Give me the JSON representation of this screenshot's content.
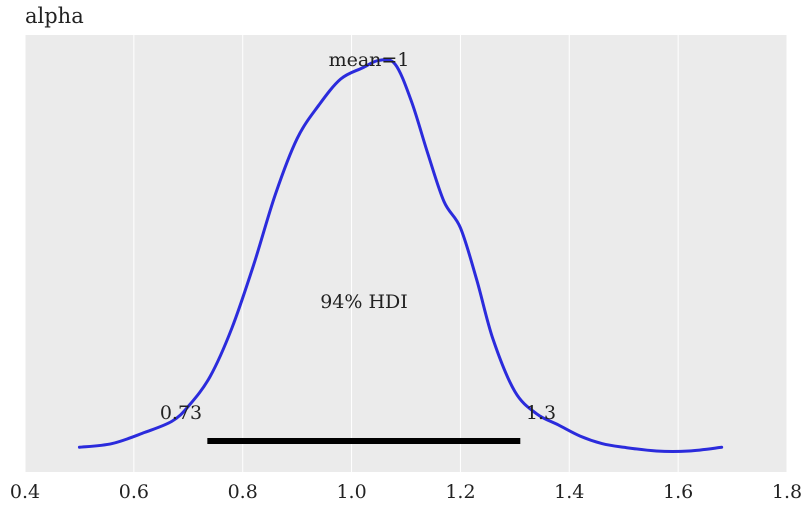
{
  "chart_data": {
    "type": "line",
    "title": "alpha",
    "xlabel": "",
    "ylabel": "",
    "xlim": [
      0.4,
      1.8
    ],
    "ylim": [
      0,
      1.07
    ],
    "xticks": [
      0.4,
      0.6,
      0.8,
      1.0,
      1.2,
      1.4,
      1.6,
      1.8
    ],
    "xtick_labels": [
      "0.4",
      "0.6",
      "0.8",
      "1.0",
      "1.2",
      "1.4",
      "1.6",
      "1.8"
    ],
    "grid": true,
    "series": [
      {
        "color": "#2b2bdc",
        "x": [
          0.5,
          0.56,
          0.62,
          0.67,
          0.7,
          0.74,
          0.78,
          0.82,
          0.86,
          0.9,
          0.94,
          0.98,
          1.02,
          1.05,
          1.08,
          1.11,
          1.14,
          1.17,
          1.2,
          1.23,
          1.26,
          1.3,
          1.34,
          1.38,
          1.42,
          1.46,
          1.5,
          1.56,
          1.62,
          1.68
        ],
        "y": [
          0.01,
          0.02,
          0.05,
          0.08,
          0.12,
          0.2,
          0.33,
          0.5,
          0.69,
          0.84,
          0.93,
          1.0,
          1.03,
          1.05,
          1.04,
          0.94,
          0.8,
          0.67,
          0.6,
          0.46,
          0.3,
          0.16,
          0.1,
          0.07,
          0.04,
          0.02,
          0.01,
          0.0,
          0.0,
          0.01
        ]
      }
    ],
    "annotations": {
      "mean_label": "mean=1",
      "hdi_label": "94% HDI",
      "hdi_low_label": "0.73",
      "hdi_high_label": "1.3"
    },
    "hdi": {
      "low": 0.735,
      "high": 1.31
    }
  }
}
